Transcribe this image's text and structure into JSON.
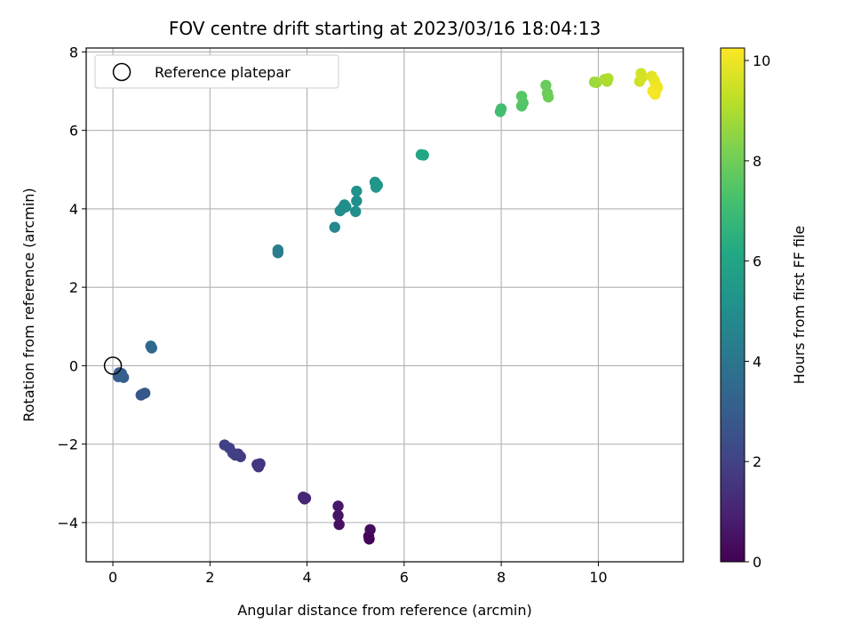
{
  "chart_data": {
    "type": "scatter",
    "title": "FOV centre drift starting at 2023/03/16 18:04:13",
    "xlabel": "Angular distance from reference (arcmin)",
    "ylabel": "Rotation from reference (arcmin)",
    "xlim": [
      -0.55,
      11.75
    ],
    "ylim": [
      -5.0,
      8.1
    ],
    "xticks": [
      0,
      2,
      4,
      6,
      8,
      10
    ],
    "yticks": [
      -4,
      -2,
      0,
      2,
      4,
      6,
      8
    ],
    "xtick_labels": [
      "0",
      "2",
      "4",
      "6",
      "8",
      "10"
    ],
    "ytick_labels": [
      "−4",
      "−2",
      "0",
      "2",
      "4",
      "6",
      "8"
    ],
    "grid": true,
    "legend": {
      "position": "upper-left",
      "entries": [
        "Reference platepar"
      ]
    },
    "reference_point": {
      "x": 0,
      "y": 0,
      "label": "Reference platepar",
      "marker": "open-circle"
    },
    "colorbar": {
      "label": "Hours from first FF file",
      "range": [
        0,
        10.25
      ],
      "ticks": [
        0,
        2,
        4,
        6,
        8,
        10
      ],
      "tick_labels": [
        "0",
        "2",
        "4",
        "6",
        "8",
        "10"
      ],
      "colormap": "viridis"
    },
    "points": [
      {
        "x": 5.28,
        "y": -4.42,
        "c": 0.05
      },
      {
        "x": 5.27,
        "y": -4.35,
        "c": 0.15
      },
      {
        "x": 5.3,
        "y": -4.18,
        "c": 0.3
      },
      {
        "x": 4.66,
        "y": -4.05,
        "c": 0.45
      },
      {
        "x": 4.64,
        "y": -3.82,
        "c": 0.55
      },
      {
        "x": 4.64,
        "y": -3.58,
        "c": 0.65
      },
      {
        "x": 3.95,
        "y": -3.4,
        "c": 1.0
      },
      {
        "x": 3.92,
        "y": -3.35,
        "c": 1.05
      },
      {
        "x": 3.97,
        "y": -3.38,
        "c": 1.1
      },
      {
        "x": 3.0,
        "y": -2.58,
        "c": 1.5
      },
      {
        "x": 3.03,
        "y": -2.5,
        "c": 1.55
      },
      {
        "x": 2.97,
        "y": -2.52,
        "c": 1.6
      },
      {
        "x": 2.63,
        "y": -2.32,
        "c": 1.75
      },
      {
        "x": 2.58,
        "y": -2.25,
        "c": 1.8
      },
      {
        "x": 2.52,
        "y": -2.28,
        "c": 1.85
      },
      {
        "x": 2.47,
        "y": -2.23,
        "c": 1.9
      },
      {
        "x": 2.4,
        "y": -2.1,
        "c": 1.95
      },
      {
        "x": 2.3,
        "y": -2.02,
        "c": 2.0
      },
      {
        "x": 0.62,
        "y": -0.72,
        "c": 2.7
      },
      {
        "x": 0.58,
        "y": -0.75,
        "c": 2.75
      },
      {
        "x": 0.66,
        "y": -0.7,
        "c": 2.8
      },
      {
        "x": 0.17,
        "y": -0.27,
        "c": 3.0
      },
      {
        "x": 0.22,
        "y": -0.3,
        "c": 3.02
      },
      {
        "x": 0.13,
        "y": -0.18,
        "c": 3.05
      },
      {
        "x": 0.18,
        "y": -0.2,
        "c": 3.1
      },
      {
        "x": 0.11,
        "y": -0.28,
        "c": 3.12
      },
      {
        "x": 0.8,
        "y": 0.45,
        "c": 3.4
      },
      {
        "x": 0.78,
        "y": 0.5,
        "c": 3.45
      },
      {
        "x": 3.4,
        "y": 2.88,
        "c": 4.3
      },
      {
        "x": 3.4,
        "y": 2.95,
        "c": 4.35
      },
      {
        "x": 4.57,
        "y": 3.53,
        "c": 4.75
      },
      {
        "x": 4.68,
        "y": 3.95,
        "c": 4.85
      },
      {
        "x": 4.77,
        "y": 4.1,
        "c": 4.9
      },
      {
        "x": 4.72,
        "y": 4.0,
        "c": 4.95
      },
      {
        "x": 4.8,
        "y": 4.05,
        "c": 5.0
      },
      {
        "x": 5.0,
        "y": 3.93,
        "c": 5.05
      },
      {
        "x": 5.02,
        "y": 4.2,
        "c": 5.1
      },
      {
        "x": 5.02,
        "y": 4.45,
        "c": 5.15
      },
      {
        "x": 5.4,
        "y": 4.68,
        "c": 5.3
      },
      {
        "x": 5.45,
        "y": 4.6,
        "c": 5.35
      },
      {
        "x": 5.42,
        "y": 4.55,
        "c": 5.4
      },
      {
        "x": 6.35,
        "y": 5.38,
        "c": 6.0
      },
      {
        "x": 6.4,
        "y": 5.37,
        "c": 6.05
      },
      {
        "x": 7.98,
        "y": 6.48,
        "c": 7.1
      },
      {
        "x": 8.0,
        "y": 6.55,
        "c": 7.15
      },
      {
        "x": 8.42,
        "y": 6.62,
        "c": 7.45
      },
      {
        "x": 8.45,
        "y": 6.7,
        "c": 7.5
      },
      {
        "x": 8.42,
        "y": 6.87,
        "c": 7.55
      },
      {
        "x": 8.92,
        "y": 7.15,
        "c": 7.85
      },
      {
        "x": 8.95,
        "y": 6.95,
        "c": 7.9
      },
      {
        "x": 8.97,
        "y": 6.85,
        "c": 7.95
      },
      {
        "x": 9.92,
        "y": 7.23,
        "c": 8.7
      },
      {
        "x": 9.96,
        "y": 7.22,
        "c": 8.75
      },
      {
        "x": 10.13,
        "y": 7.3,
        "c": 8.9
      },
      {
        "x": 10.18,
        "y": 7.25,
        "c": 8.95
      },
      {
        "x": 10.2,
        "y": 7.32,
        "c": 9.0
      },
      {
        "x": 10.85,
        "y": 7.25,
        "c": 9.5
      },
      {
        "x": 10.88,
        "y": 7.45,
        "c": 9.55
      },
      {
        "x": 10.9,
        "y": 7.35,
        "c": 9.6
      },
      {
        "x": 11.1,
        "y": 7.38,
        "c": 9.8
      },
      {
        "x": 11.15,
        "y": 7.28,
        "c": 9.9
      },
      {
        "x": 11.18,
        "y": 7.18,
        "c": 9.95
      },
      {
        "x": 11.2,
        "y": 7.05,
        "c": 10.0
      },
      {
        "x": 11.22,
        "y": 7.1,
        "c": 10.05
      },
      {
        "x": 11.17,
        "y": 6.92,
        "c": 10.1
      },
      {
        "x": 11.12,
        "y": 7.0,
        "c": 10.15
      }
    ]
  }
}
